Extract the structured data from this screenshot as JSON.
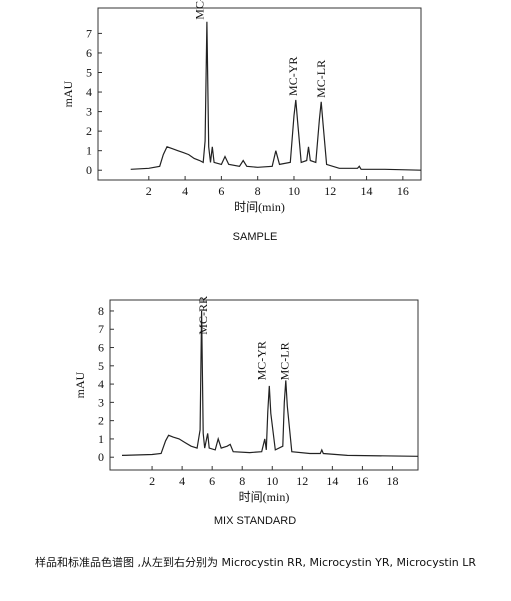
{
  "chart_data": [
    {
      "type": "line",
      "ylabel": "mAU",
      "xlabel": "时间(min)",
      "caption": "SAMPLE",
      "color": "#222",
      "xlim": [
        -0.8,
        17
      ],
      "ylim": [
        -0.5,
        8.3
      ],
      "xticks": [
        2,
        4,
        6,
        8,
        10,
        12,
        14,
        16
      ],
      "yticks": [
        0,
        1,
        2,
        3,
        4,
        5,
        6,
        7
      ],
      "x": [
        1.0,
        2.0,
        2.6,
        2.8,
        3.0,
        3.3,
        3.6,
        3.9,
        4.2,
        4.5,
        4.8,
        5.0,
        5.1,
        5.2,
        5.3,
        5.4,
        5.5,
        5.6,
        6.0,
        6.2,
        6.4,
        7.0,
        7.2,
        7.4,
        8.0,
        8.8,
        9.0,
        9.2,
        9.8,
        10.0,
        10.1,
        10.2,
        10.4,
        10.7,
        10.8,
        10.9,
        11.2,
        11.4,
        11.5,
        11.6,
        11.8,
        12.5,
        13.5,
        13.6,
        13.7,
        15,
        17
      ],
      "values": [
        0.05,
        0.1,
        0.2,
        0.8,
        1.2,
        1.1,
        1.0,
        0.9,
        0.8,
        0.6,
        0.5,
        0.4,
        1.5,
        7.6,
        1.2,
        0.4,
        1.2,
        0.4,
        0.3,
        0.7,
        0.3,
        0.2,
        0.5,
        0.2,
        0.15,
        0.2,
        1.0,
        0.3,
        0.4,
        2.8,
        3.6,
        2.5,
        0.4,
        0.5,
        1.2,
        0.5,
        0.4,
        2.6,
        3.5,
        2.4,
        0.3,
        0.1,
        0.1,
        0.2,
        0.05,
        0.05,
        0.0
      ],
      "annotations": [
        {
          "text": "MC-RR",
          "x": 4.8,
          "y": 7.7
        },
        {
          "text": "MC-YR",
          "x": 9.95,
          "y": 3.8
        },
        {
          "text": "MC-LR",
          "x": 11.5,
          "y": 3.7
        }
      ]
    },
    {
      "type": "line",
      "ylabel": "mAU",
      "xlabel": "时间(min)",
      "caption": "MIX STANDARD",
      "color": "#222",
      "xlim": [
        -0.8,
        19.7
      ],
      "ylim": [
        -0.7,
        8.6
      ],
      "xticks": [
        2,
        4,
        6,
        8,
        10,
        12,
        14,
        16,
        18
      ],
      "yticks": [
        0,
        1,
        2,
        3,
        4,
        5,
        6,
        7,
        8
      ],
      "x": [
        0,
        2,
        2.6,
        2.9,
        3.1,
        3.4,
        3.8,
        4.2,
        4.6,
        5.0,
        5.2,
        5.3,
        5.4,
        5.5,
        5.7,
        5.8,
        6.2,
        6.4,
        6.6,
        7.0,
        7.2,
        7.4,
        8.5,
        9.3,
        9.5,
        9.6,
        9.7,
        9.8,
        9.9,
        10.2,
        10.7,
        10.8,
        10.9,
        11.0,
        11.3,
        12.5,
        13.2,
        13.3,
        13.4,
        15,
        19.7
      ],
      "values": [
        0.1,
        0.15,
        0.2,
        0.9,
        1.2,
        1.1,
        1.0,
        0.8,
        0.6,
        0.5,
        1.5,
        8.0,
        1.3,
        0.5,
        1.3,
        0.5,
        0.4,
        1.0,
        0.5,
        0.6,
        0.7,
        0.3,
        0.25,
        0.3,
        1.0,
        0.4,
        2.5,
        3.9,
        2.4,
        0.4,
        0.6,
        3.0,
        4.2,
        2.8,
        0.3,
        0.2,
        0.2,
        0.4,
        0.2,
        0.1,
        0.05
      ],
      "annotations": [
        {
          "text": "MC-RR",
          "x": 5.4,
          "y": 6.7
        },
        {
          "text": "MC-YR",
          "x": 9.3,
          "y": 4.2
        },
        {
          "text": "MC-LR",
          "x": 10.8,
          "y": 4.2
        }
      ]
    }
  ],
  "caption": "样品和标准品色谱图 ,从左到右分别为 Microcystin RR, Microcystin YR, Microcystin LR"
}
